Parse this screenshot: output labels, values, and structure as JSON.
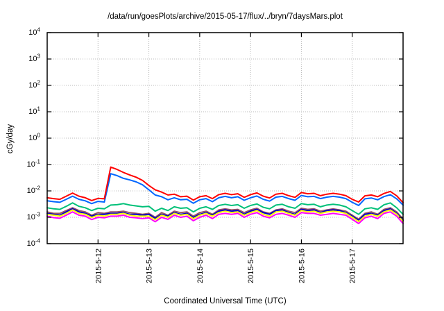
{
  "title": "/data/run/goesPlots/archive/2015-05-17/flux/../bryn/7daysMars.plot",
  "axes": {
    "ylabel": "cGy/day",
    "xlabel": "Coordinated Universal Time (UTC)",
    "y_tick_exponents": [
      4,
      3,
      2,
      1,
      0,
      -1,
      -2,
      -3,
      -4
    ],
    "x_tick_labels": [
      "2015-5-12",
      "2015-5-13",
      "2015-5-14",
      "2015-5-15",
      "2015-5-16",
      "2015-5-17"
    ],
    "x_tick_day_offsets": [
      1,
      2,
      3,
      4,
      5,
      6
    ]
  },
  "style": {
    "background": "#ffffff",
    "frame_color": "#000000",
    "grid_color": "#b8b8b8",
    "tick_color": "#000000",
    "text_color": "#000000"
  },
  "chart_data": {
    "type": "line",
    "title": "/data/run/goesPlots/archive/2015-05-17/flux/../bryn/7daysMars.plot",
    "xlabel": "Coordinated Universal Time (UTC)",
    "ylabel": "cGy/day",
    "yscale": "log",
    "ylim": [
      0.0001,
      10000
    ],
    "x_days_span": 7,
    "x_start_day": 0,
    "x_step_days": 0.125,
    "grid": true,
    "legend_position": "none",
    "series": [
      {
        "name": "brown",
        "color": "#995566",
        "values": [
          0.0016,
          0.0014,
          0.0014,
          0.0018,
          0.0023,
          0.0018,
          0.0016,
          0.0012,
          0.0015,
          0.0014,
          0.0016,
          0.0016,
          0.0017,
          0.0015,
          0.0014,
          0.0013,
          0.0014,
          0.001,
          0.0015,
          0.0012,
          0.0017,
          0.0015,
          0.0016,
          0.0011,
          0.0015,
          0.0017,
          0.0013,
          0.0019,
          0.0021,
          0.0019,
          0.002,
          0.0015,
          0.0019,
          0.0022,
          0.0016,
          0.0014,
          0.0019,
          0.0021,
          0.0017,
          0.0015,
          0.0022,
          0.002,
          0.0021,
          0.0017,
          0.0019,
          0.0021,
          0.0019,
          0.0017,
          0.0012,
          0.00085,
          0.0014,
          0.0016,
          0.0013,
          0.002,
          0.0023,
          0.0016,
          0.00085
        ]
      },
      {
        "name": "navy",
        "color": "#0000cc",
        "values": [
          0.0014,
          0.0013,
          0.0012,
          0.0016,
          0.0021,
          0.0016,
          0.0014,
          0.0011,
          0.0013,
          0.0013,
          0.0014,
          0.0014,
          0.0015,
          0.0013,
          0.0013,
          0.0012,
          0.0013,
          0.00091,
          0.0013,
          0.0011,
          0.0015,
          0.0013,
          0.0014,
          0.00098,
          0.0013,
          0.0015,
          0.0012,
          0.0017,
          0.0019,
          0.0017,
          0.0018,
          0.0013,
          0.0017,
          0.002,
          0.0015,
          0.0013,
          0.0018,
          0.0019,
          0.0015,
          0.0013,
          0.002,
          0.0018,
          0.0019,
          0.0015,
          0.0018,
          0.0019,
          0.0018,
          0.0015,
          0.0011,
          0.00077,
          0.0013,
          0.0014,
          0.0012,
          0.0018,
          0.0021,
          0.0014,
          0.00077
        ]
      },
      {
        "name": "yellow",
        "color": "#ffff00",
        "values": [
          0.0013,
          0.0012,
          0.0011,
          0.0014,
          0.0019,
          0.0014,
          0.0013,
          0.00098,
          0.0012,
          0.0011,
          0.0013,
          0.0013,
          0.0014,
          0.0012,
          0.0011,
          0.0011,
          0.0011,
          0.00081,
          0.0012,
          0.001,
          0.0014,
          0.0012,
          0.0013,
          0.00088,
          0.0012,
          0.0014,
          0.0011,
          0.0015,
          0.0017,
          0.0015,
          0.0016,
          0.0012,
          0.0015,
          0.0018,
          0.0013,
          0.0011,
          0.0016,
          0.0017,
          0.0014,
          0.0012,
          0.0018,
          0.0016,
          0.0017,
          0.0014,
          0.0016,
          0.0017,
          0.0016,
          0.0014,
          0.001,
          0.00069,
          0.0011,
          0.0013,
          0.0011,
          0.0016,
          0.0019,
          0.0013,
          0.00069
        ]
      },
      {
        "name": "magenta",
        "color": "#ff00ff",
        "values": [
          0.0011,
          0.00097,
          0.00092,
          0.0012,
          0.0016,
          0.0012,
          0.0011,
          0.00082,
          0.001,
          0.00095,
          0.0011,
          0.0011,
          0.0012,
          0.001,
          0.00095,
          0.00089,
          0.00095,
          0.00068,
          0.001,
          0.00084,
          0.0012,
          0.001,
          0.0011,
          0.00074,
          0.001,
          0.0012,
          0.00089,
          0.0013,
          0.0014,
          0.0013,
          0.0014,
          0.001,
          0.0013,
          0.0015,
          0.0011,
          0.00095,
          0.0013,
          0.0014,
          0.0012,
          0.001,
          0.0015,
          0.0014,
          0.0014,
          0.0012,
          0.0013,
          0.0014,
          0.0013,
          0.0012,
          0.00084,
          0.00058,
          0.00095,
          0.0011,
          0.00089,
          0.0014,
          0.0016,
          0.0011,
          0.00058
        ]
      },
      {
        "name": "green",
        "color": "#00c078",
        "values": [
          0.0023,
          0.0021,
          0.002,
          0.0026,
          0.0035,
          0.0026,
          0.0023,
          0.0018,
          0.0022,
          0.0021,
          0.0029,
          0.003,
          0.0033,
          0.0029,
          0.0027,
          0.0025,
          0.0026,
          0.0017,
          0.0022,
          0.0018,
          0.0025,
          0.0022,
          0.0023,
          0.0016,
          0.0022,
          0.0025,
          0.002,
          0.0028,
          0.0031,
          0.0028,
          0.003,
          0.0022,
          0.0028,
          0.0032,
          0.0024,
          0.0021,
          0.0029,
          0.0031,
          0.0025,
          0.0022,
          0.0033,
          0.003,
          0.0031,
          0.0025,
          0.0029,
          0.0031,
          0.0029,
          0.0025,
          0.0018,
          0.0013,
          0.0021,
          0.0023,
          0.002,
          0.003,
          0.0035,
          0.0023,
          0.0013
        ]
      },
      {
        "name": "blue",
        "color": "#0066ff",
        "values": [
          0.0042,
          0.0039,
          0.0037,
          0.0048,
          0.0063,
          0.0048,
          0.0042,
          0.0033,
          0.004,
          0.0038,
          0.045,
          0.038,
          0.03,
          0.026,
          0.022,
          0.017,
          0.011,
          0.007,
          0.006,
          0.0046,
          0.0055,
          0.0046,
          0.0048,
          0.0034,
          0.0046,
          0.0051,
          0.0039,
          0.0055,
          0.0062,
          0.0055,
          0.006,
          0.0044,
          0.0055,
          0.0064,
          0.0048,
          0.0041,
          0.0058,
          0.0062,
          0.0051,
          0.0044,
          0.0067,
          0.006,
          0.0062,
          0.0051,
          0.0058,
          0.0062,
          0.0058,
          0.0051,
          0.0037,
          0.0028,
          0.005,
          0.0054,
          0.0046,
          0.0061,
          0.0072,
          0.005,
          0.0029
        ]
      },
      {
        "name": "red",
        "color": "#ff0000",
        "values": [
          0.0055,
          0.0051,
          0.0048,
          0.0063,
          0.0083,
          0.0063,
          0.0055,
          0.0043,
          0.0052,
          0.005,
          0.08,
          0.065,
          0.05,
          0.04,
          0.033,
          0.025,
          0.016,
          0.011,
          0.009,
          0.007,
          0.0075,
          0.006,
          0.0063,
          0.0045,
          0.006,
          0.0066,
          0.0051,
          0.0072,
          0.0081,
          0.0072,
          0.0078,
          0.0057,
          0.0072,
          0.0084,
          0.0063,
          0.0054,
          0.0075,
          0.0081,
          0.0066,
          0.0057,
          0.0087,
          0.0078,
          0.0081,
          0.0066,
          0.0075,
          0.0081,
          0.0075,
          0.0066,
          0.0048,
          0.0038,
          0.0065,
          0.007,
          0.006,
          0.008,
          0.0095,
          0.0065,
          0.0036
        ]
      }
    ]
  }
}
